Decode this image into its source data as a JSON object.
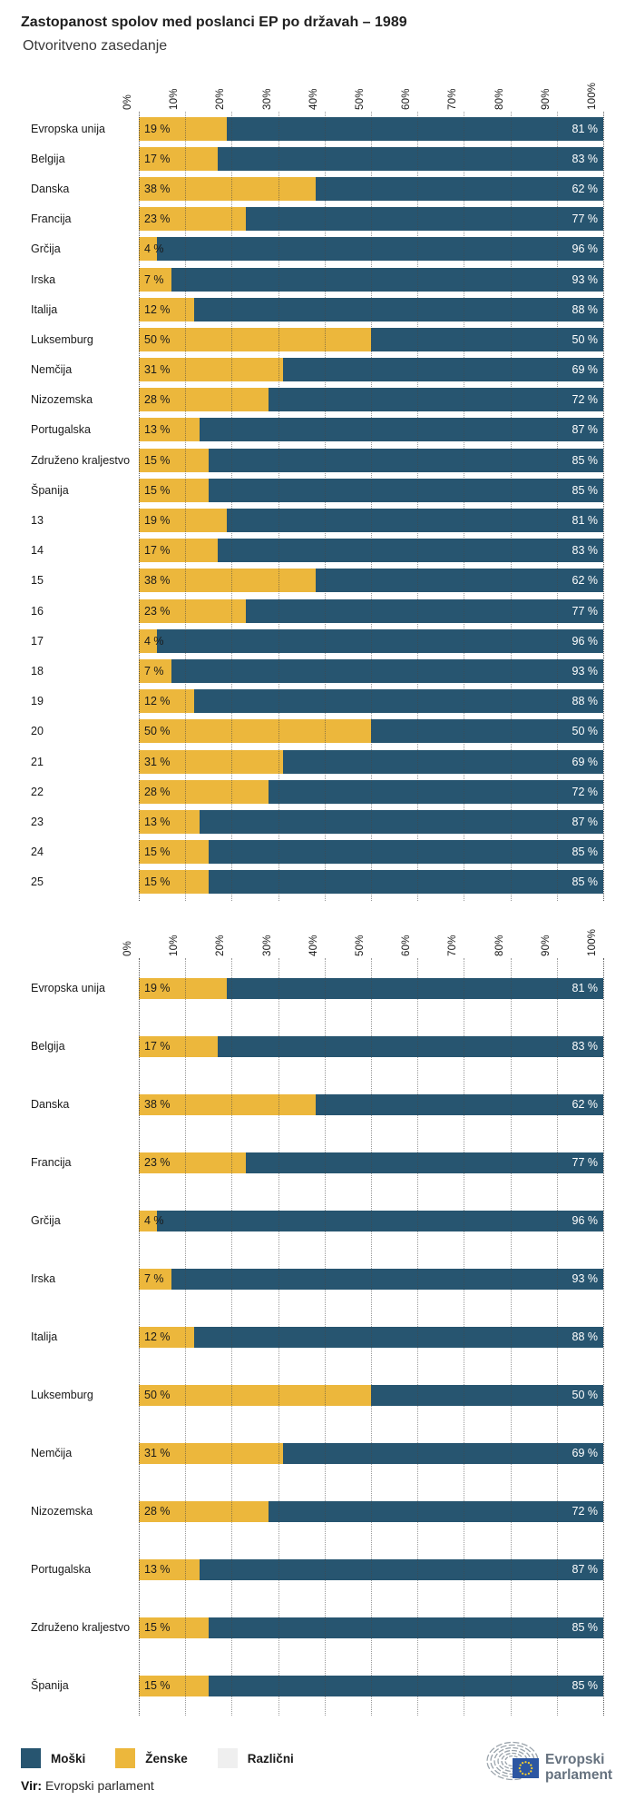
{
  "title": "Zastopanost spolov med poslanci EP po državah – 1989",
  "subtitle": "Otvoritveno zasedanje",
  "colors": {
    "moski": "#275570",
    "zenske": "#ECB73C",
    "razlicni": "#EFEFEF",
    "gridline": "#464646",
    "value_dark": "#1a1a1a",
    "value_light": "#ffffff"
  },
  "legend": {
    "items": [
      {
        "label": "Moški",
        "color": "#275570"
      },
      {
        "label": "Ženske",
        "color": "#ECB73C"
      },
      {
        "label": "Različni",
        "color": "#EFEFEF"
      }
    ]
  },
  "source": {
    "prefix": "Vir:",
    "text": " Evropski parlament"
  },
  "logo": {
    "line1": "Evropski",
    "line2": "parlament"
  },
  "chart_data": [
    {
      "type": "bar",
      "orientation": "horizontal",
      "stacked": true,
      "title": "",
      "xlim": [
        0,
        100
      ],
      "grid": "vertical-dotted",
      "x_tick_labels": [
        "0%",
        "10%",
        "20%",
        "30%",
        "40%",
        "50%",
        "60%",
        "70%",
        "80%",
        "90%",
        "100%"
      ],
      "value_label_suffix": " %",
      "categories": [
        "Evropska unija",
        "Belgija",
        "Danska",
        "Francija",
        "Grčija",
        "Irska",
        "Italija",
        "Luksemburg",
        "Nemčija",
        "Nizozemska",
        "Portugalska",
        "Združeno kraljestvo",
        "Španija",
        "13",
        "14",
        "15",
        "16",
        "17",
        "18",
        "19",
        "20",
        "21",
        "22",
        "23",
        "24",
        "25"
      ],
      "series": [
        {
          "name": "Ženske",
          "color": "#ECB73C",
          "values": [
            19,
            17,
            38,
            23,
            4,
            7,
            12,
            50,
            31,
            28,
            13,
            15,
            15,
            19,
            17,
            38,
            23,
            4,
            7,
            12,
            50,
            31,
            28,
            13,
            15,
            15
          ]
        },
        {
          "name": "Moški",
          "color": "#275570",
          "values": [
            81,
            83,
            62,
            77,
            96,
            93,
            88,
            50,
            69,
            72,
            87,
            85,
            85,
            81,
            83,
            62,
            77,
            96,
            93,
            88,
            50,
            69,
            72,
            87,
            85,
            85
          ]
        }
      ]
    },
    {
      "type": "bar",
      "orientation": "horizontal",
      "stacked": true,
      "title": "",
      "xlim": [
        0,
        100
      ],
      "grid": "vertical-dotted",
      "x_tick_labels": [
        "0%",
        "10%",
        "20%",
        "30%",
        "40%",
        "50%",
        "60%",
        "70%",
        "80%",
        "90%",
        "100%"
      ],
      "value_label_suffix": " %",
      "categories": [
        "Evropska unija",
        "Belgija",
        "Danska",
        "Francija",
        "Grčija",
        "Irska",
        "Italija",
        "Luksemburg",
        "Nemčija",
        "Nizozemska",
        "Portugalska",
        "Združeno kraljestvo",
        "Španija"
      ],
      "series": [
        {
          "name": "Ženske",
          "color": "#ECB73C",
          "values": [
            19,
            17,
            38,
            23,
            4,
            7,
            12,
            50,
            31,
            28,
            13,
            15,
            15
          ]
        },
        {
          "name": "Moški",
          "color": "#275570",
          "values": [
            81,
            83,
            62,
            77,
            96,
            93,
            88,
            50,
            69,
            72,
            87,
            85,
            85
          ]
        }
      ]
    }
  ]
}
